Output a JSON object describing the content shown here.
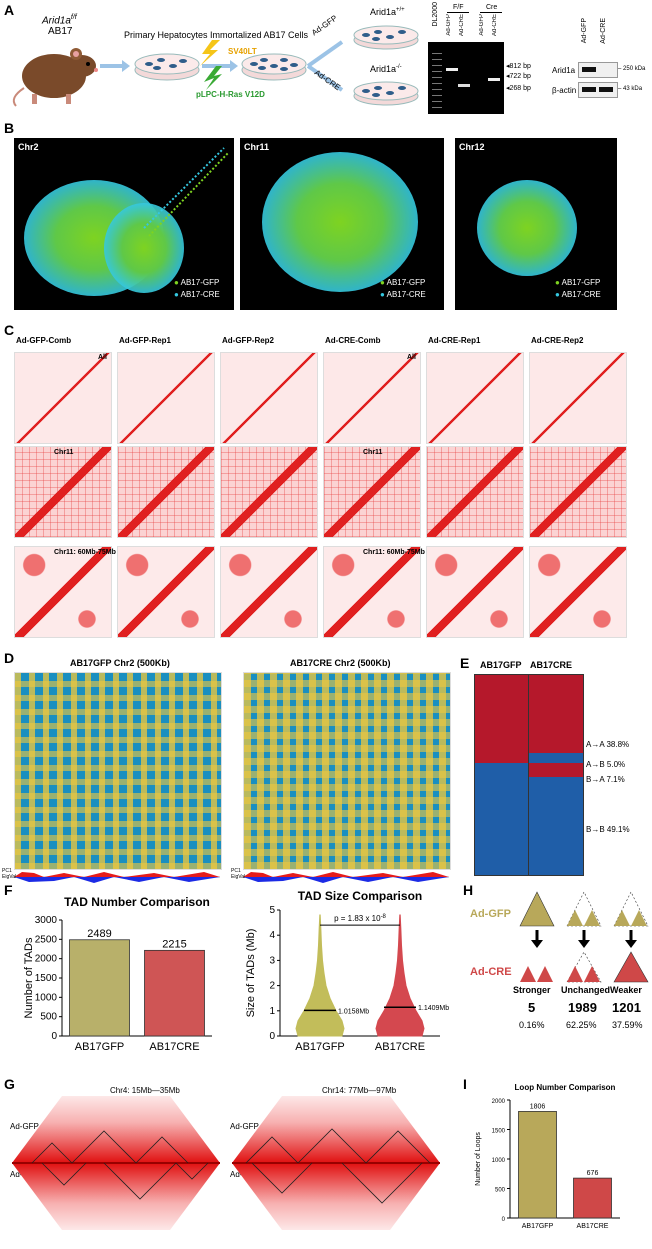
{
  "panels": [
    "A",
    "B",
    "C",
    "D",
    "E",
    "F",
    "H",
    "G",
    "I"
  ],
  "A": {
    "mouse_line1": "Arid1a",
    "mouse_sup": "f/f",
    "mouse_line2": "AB17",
    "primary": "Primary Hepatocytes",
    "immortalized": "Immortalized AB17 Cells",
    "sv40": "SV40LT",
    "ras": "pLPC-H-Ras V12D",
    "ad_gfp": "Ad-GFP",
    "ad_cre": "Ad-CRE",
    "wt": "Arid1a",
    "wt_sup": "+/+",
    "ko": "Arid1a",
    "ko_sup": "-/-",
    "gel_ladder": "DL2000",
    "gel_ff": "F/F",
    "gel_cre": "Cre",
    "gel_lanes": [
      "Ad-GFP",
      "Ad-CRE",
      "Ad-GFP",
      "Ad-CRE"
    ],
    "gel_sizes": [
      "812 bp",
      "722 bp",
      "268 bp"
    ],
    "wb_lanes": [
      "Ad-GFP",
      "Ad-CRE"
    ],
    "wb_rows": [
      "Arid1a",
      "β-actin"
    ],
    "wb_sizes": [
      "250 kDa",
      "43 kDa"
    ]
  },
  "B": {
    "panels": [
      "Chr2",
      "Chr11",
      "Chr12"
    ],
    "legend": [
      "AB17-GFP",
      "AB17-CRE"
    ],
    "colors": {
      "gfp": "#7ed321",
      "cre": "#35c8e0"
    }
  },
  "C": {
    "columns": [
      "Ad-GFP-Comb",
      "Ad-GFP-Rep1",
      "Ad-GFP-Rep2",
      "Ad-CRE-Comb",
      "Ad-CRE-Rep1",
      "Ad-CRE-Rep2"
    ],
    "row_labels": [
      "All",
      "Chr11",
      "Chr11: 60Mb-75Mb"
    ]
  },
  "D": {
    "titles": [
      "AB17GFP Chr2 (500Kb)",
      "AB17CRE Chr2 (500Kb)"
    ],
    "pc_label": [
      "PC1",
      "EigVal"
    ]
  },
  "E": {
    "headers": [
      "AB17GFP",
      "AB17CRE"
    ],
    "transitions": [
      {
        "label": "A→A",
        "pct": "38.8%"
      },
      {
        "label": "A→B",
        "pct": "5.0%"
      },
      {
        "label": "B→A",
        "pct": "7.1%"
      },
      {
        "label": "B→B",
        "pct": "49.1%"
      }
    ],
    "colors": {
      "A": "#b5182b",
      "B": "#1f5ea8"
    }
  },
  "chart_data": [
    {
      "type": "bar",
      "title": "TAD Number Comparison",
      "categories": [
        "AB17GFP",
        "AB17CRE"
      ],
      "values": [
        2489,
        2215
      ],
      "ylabel": "Number of TADs",
      "ylim": [
        0,
        3000
      ],
      "yticks": [
        "0",
        "500",
        "1000",
        "1500",
        "2000",
        "2500",
        "3000"
      ],
      "colors": [
        "#b8b06a",
        "#cf5555"
      ]
    },
    {
      "type": "violin",
      "title": "TAD Size Comparison",
      "categories": [
        "AB17GFP",
        "AB17CRE"
      ],
      "medians": [
        1.0158,
        1.1409
      ],
      "median_labels": [
        "1.0158Mb",
        "1.1409Mb"
      ],
      "ylabel": "Size of TADs (Mb)",
      "ylim": [
        0,
        5
      ],
      "yticks": [
        "0",
        "1",
        "2",
        "3",
        "4",
        "5"
      ],
      "pvalue": "p = 1.83 x 10",
      "pvalue_exp": "-8",
      "colors": [
        "#c2bd5a",
        "#d4484f"
      ]
    },
    {
      "type": "bar",
      "title": "Loop Number Comparison",
      "categories": [
        "AB17GFP",
        "AB17CRE"
      ],
      "values": [
        1806,
        676
      ],
      "ylabel": "Number of Loops",
      "ylim": [
        0,
        2000
      ],
      "yticks": [
        "0",
        "500",
        "1000",
        "1500",
        "2000"
      ],
      "colors": [
        "#b8a85a",
        "#cf4848"
      ]
    }
  ],
  "H": {
    "rows": [
      "Ad-GFP",
      "Ad-CRE"
    ],
    "categories": [
      "Stronger",
      "Unchanged",
      "Weaker"
    ],
    "counts": [
      "5",
      "1989",
      "1201"
    ],
    "pcts": [
      "0.16%",
      "62.25%",
      "37.59%"
    ],
    "colors": {
      "gfp": "#b8a85a",
      "cre": "#cf4848"
    }
  },
  "G": {
    "titles": [
      "Chr4: 15Mb—35Mb",
      "Chr14: 77Mb—97Mb"
    ],
    "row_labels": [
      "Ad-GFP",
      "Ad-CRE"
    ]
  }
}
